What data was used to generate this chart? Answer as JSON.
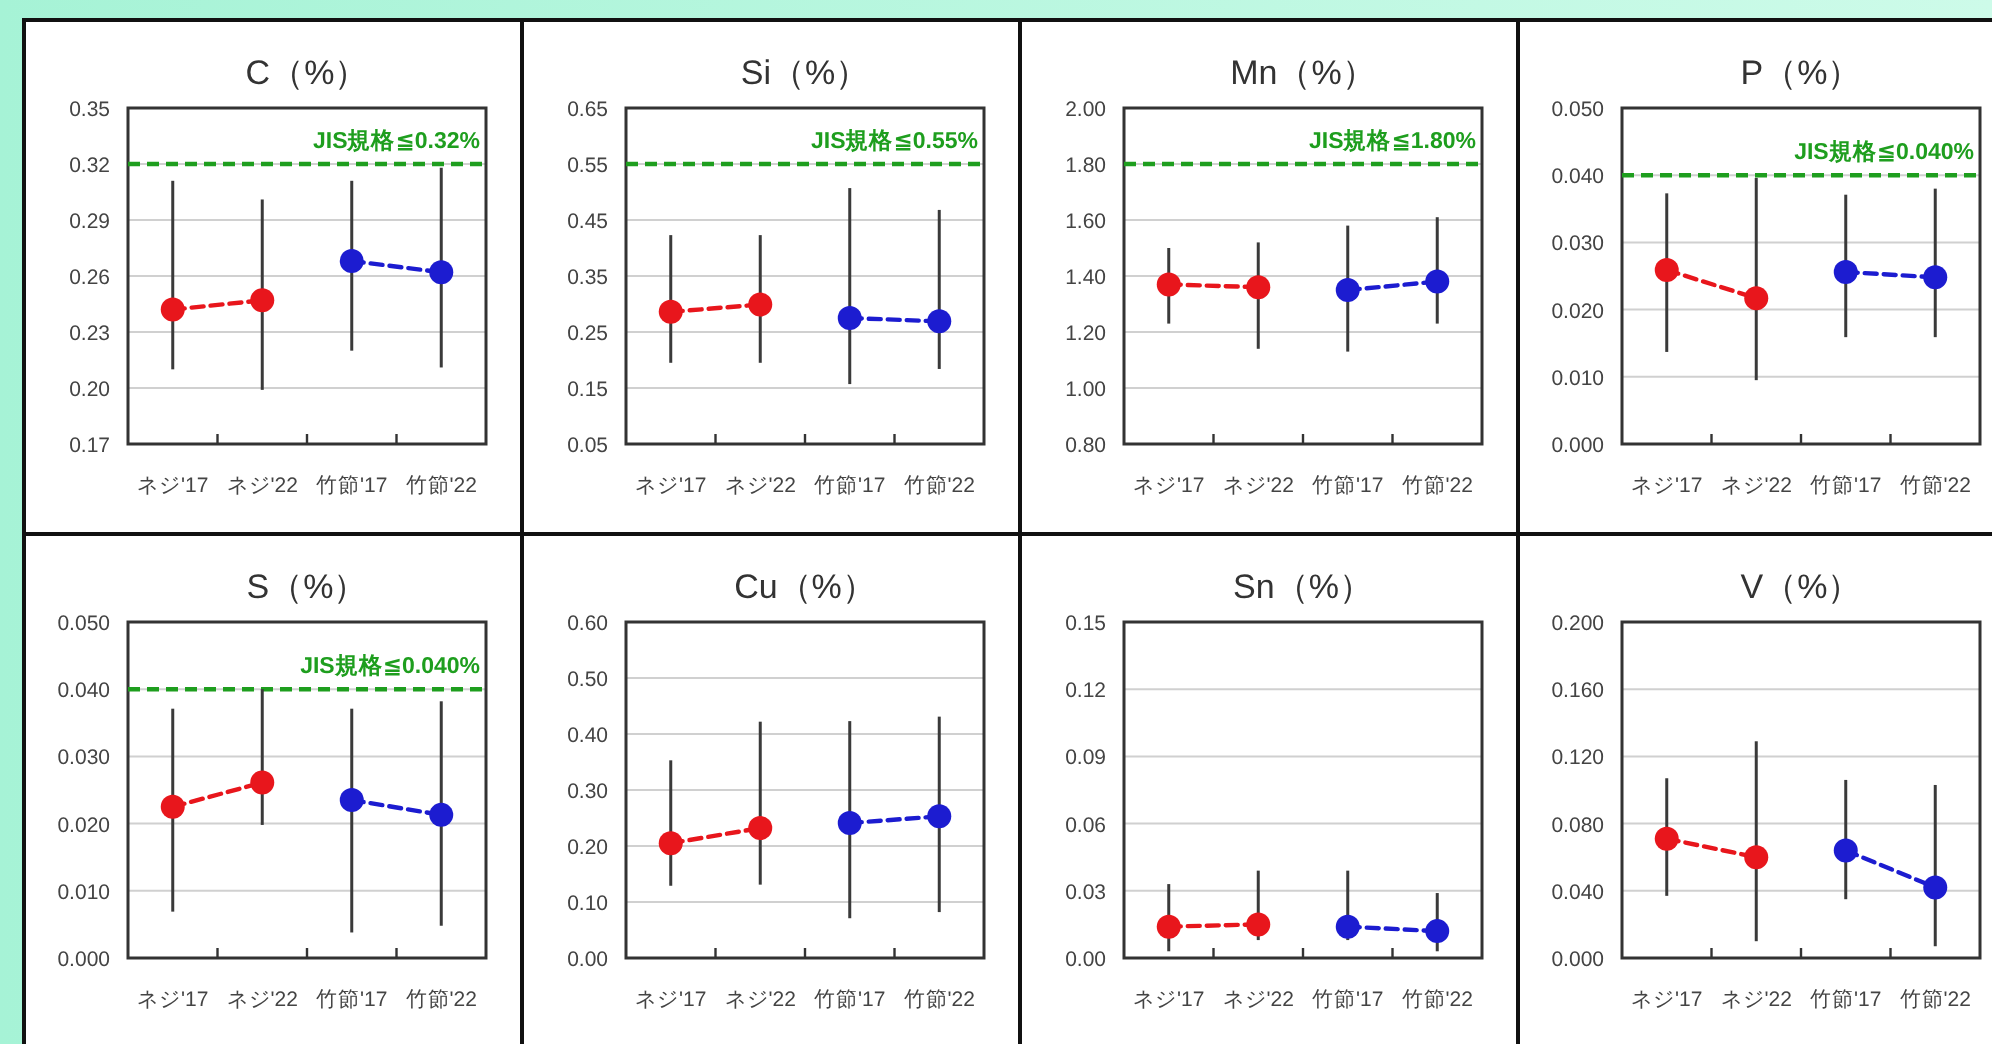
{
  "chart_data": [
    {
      "type": "line",
      "title": "C（%）",
      "categories": [
        "ネジ'17",
        "ネジ'22",
        "竹節'17",
        "竹節'22"
      ],
      "grid": "y",
      "marker": "circle",
      "line_style": "dashed",
      "ylim": [
        0.17,
        0.35
      ],
      "yticks": [
        0.17,
        {
          "value": 0.2,
          "label": "0.20"
        },
        0.23,
        0.26,
        0.29,
        0.32,
        0.35
      ],
      "ref_lines": [
        {
          "axis": "y",
          "value": 0.32,
          "label": "JIS規格≦0.32%",
          "color": "#1e9e1e",
          "line_style": "dashed"
        }
      ],
      "series": [
        {
          "color": "#e8161c",
          "values": [
            0.242,
            0.247,
            null,
            null
          ],
          "errors": [
            [
              0.21,
              0.311
            ],
            [
              0.199,
              0.301
            ],
            null,
            null
          ]
        },
        {
          "color": "#1c1cd0",
          "values": [
            null,
            null,
            0.268,
            0.262
          ],
          "errors": [
            null,
            null,
            [
              0.22,
              0.311
            ],
            [
              0.211,
              0.318
            ]
          ]
        }
      ]
    },
    {
      "type": "line",
      "title": "Si（%）",
      "categories": [
        "ネジ'17",
        "ネジ'22",
        "竹節'17",
        "竹節'22"
      ],
      "grid": "y",
      "marker": "circle",
      "line_style": "dashed",
      "ylim": [
        0.05,
        0.65
      ],
      "yticks": [
        0.05,
        0.15,
        0.25,
        0.35,
        0.45,
        0.55,
        0.65
      ],
      "ref_lines": [
        {
          "axis": "y",
          "value": 0.55,
          "label": "JIS規格≦0.55%",
          "color": "#1e9e1e",
          "line_style": "dashed"
        }
      ],
      "series": [
        {
          "color": "#e8161c",
          "values": [
            0.286,
            0.299,
            null,
            null
          ],
          "errors": [
            [
              0.195,
              0.423
            ],
            [
              0.195,
              0.423
            ],
            null,
            null
          ]
        },
        {
          "color": "#1c1cd0",
          "values": [
            null,
            null,
            0.275,
            0.269
          ],
          "errors": [
            null,
            null,
            [
              0.157,
              0.507
            ],
            [
              0.184,
              0.468
            ]
          ]
        }
      ]
    },
    {
      "type": "line",
      "title": "Mn（%）",
      "categories": [
        "ネジ'17",
        "ネジ'22",
        "竹節'17",
        "竹節'22"
      ],
      "grid": "y",
      "marker": "circle",
      "line_style": "dashed",
      "ylim": [
        0.8,
        2.0
      ],
      "yticks": [
        {
          "value": 0.8,
          "label": "0.80"
        },
        {
          "value": 1.0,
          "label": "1.00"
        },
        {
          "value": 1.2,
          "label": "1.20"
        },
        {
          "value": 1.4,
          "label": "1.40"
        },
        {
          "value": 1.6,
          "label": "1.60"
        },
        {
          "value": 1.8,
          "label": "1.80"
        },
        {
          "value": 2.0,
          "label": "2.00"
        }
      ],
      "ref_lines": [
        {
          "axis": "y",
          "value": 1.8,
          "label": "JIS規格≦1.80%",
          "color": "#1e9e1e",
          "line_style": "dashed"
        }
      ],
      "series": [
        {
          "color": "#e8161c",
          "values": [
            1.37,
            1.36,
            null,
            null
          ],
          "errors": [
            [
              1.23,
              1.5
            ],
            [
              1.14,
              1.52
            ],
            null,
            null
          ]
        },
        {
          "color": "#1c1cd0",
          "values": [
            null,
            null,
            1.35,
            1.38
          ],
          "errors": [
            null,
            null,
            [
              1.13,
              1.58
            ],
            [
              1.23,
              1.61
            ]
          ]
        }
      ]
    },
    {
      "type": "line",
      "title": "P（%）",
      "categories": [
        "ネジ'17",
        "ネジ'22",
        "竹節'17",
        "竹節'22"
      ],
      "grid": "y",
      "marker": "circle",
      "line_style": "dashed",
      "ylim": [
        0,
        0.05
      ],
      "yticks": [
        {
          "value": 0,
          "label": "0.000"
        },
        {
          "value": 0.01,
          "label": "0.010"
        },
        {
          "value": 0.02,
          "label": "0.020"
        },
        {
          "value": 0.03,
          "label": "0.030"
        },
        {
          "value": 0.04,
          "label": "0.040"
        },
        {
          "value": 0.05,
          "label": "0.050"
        }
      ],
      "ref_lines": [
        {
          "axis": "y",
          "value": 0.04,
          "label": "JIS規格≦0.040%",
          "color": "#1e9e1e",
          "line_style": "dashed"
        }
      ],
      "series": [
        {
          "color": "#e8161c",
          "values": [
            0.0259,
            0.0217,
            null,
            null
          ],
          "errors": [
            [
              0.0137,
              0.0373
            ],
            [
              0.0095,
              0.0396
            ],
            null,
            null
          ]
        },
        {
          "color": "#1c1cd0",
          "values": [
            null,
            null,
            0.0256,
            0.0248
          ],
          "errors": [
            null,
            null,
            [
              0.0159,
              0.0371
            ],
            [
              0.0159,
              0.038
            ]
          ]
        }
      ]
    },
    {
      "type": "line",
      "title": "S（%）",
      "categories": [
        "ネジ'17",
        "ネジ'22",
        "竹節'17",
        "竹節'22"
      ],
      "grid": "y",
      "marker": "circle",
      "line_style": "dashed",
      "ylim": [
        0,
        0.05
      ],
      "yticks": [
        {
          "value": 0,
          "label": "0.000"
        },
        {
          "value": 0.01,
          "label": "0.010"
        },
        {
          "value": 0.02,
          "label": "0.020"
        },
        {
          "value": 0.03,
          "label": "0.030"
        },
        {
          "value": 0.04,
          "label": "0.040"
        },
        {
          "value": 0.05,
          "label": "0.050"
        }
      ],
      "ref_lines": [
        {
          "axis": "y",
          "value": 0.04,
          "label": "JIS規格≦0.040%",
          "color": "#1e9e1e",
          "line_style": "dashed"
        }
      ],
      "series": [
        {
          "color": "#e8161c",
          "values": [
            0.0225,
            0.0261,
            null,
            null
          ],
          "errors": [
            [
              0.0069,
              0.0371
            ],
            [
              0.0198,
              0.04
            ],
            null,
            null
          ]
        },
        {
          "color": "#1c1cd0",
          "values": [
            null,
            null,
            0.0235,
            0.0213
          ],
          "errors": [
            null,
            null,
            [
              0.0038,
              0.0371
            ],
            [
              0.0048,
              0.0382
            ]
          ]
        }
      ]
    },
    {
      "type": "line",
      "title": "Cu（%）",
      "categories": [
        "ネジ'17",
        "ネジ'22",
        "竹節'17",
        "竹節'22"
      ],
      "grid": "y",
      "marker": "circle",
      "line_style": "dashed",
      "ylim": [
        0,
        0.6
      ],
      "yticks": [
        {
          "value": 0,
          "label": "0.00"
        },
        {
          "value": 0.1,
          "label": "0.10"
        },
        {
          "value": 0.2,
          "label": "0.20"
        },
        {
          "value": 0.3,
          "label": "0.30"
        },
        {
          "value": 0.4,
          "label": "0.40"
        },
        {
          "value": 0.5,
          "label": "0.50"
        },
        {
          "value": 0.6,
          "label": "0.60"
        }
      ],
      "series": [
        {
          "color": "#e8161c",
          "values": [
            0.205,
            0.232,
            null,
            null
          ],
          "errors": [
            [
              0.129,
              0.353
            ],
            [
              0.131,
              0.422
            ],
            null,
            null
          ]
        },
        {
          "color": "#1c1cd0",
          "values": [
            null,
            null,
            0.241,
            0.253
          ],
          "errors": [
            null,
            null,
            [
              0.071,
              0.423
            ],
            [
              0.082,
              0.431
            ]
          ]
        }
      ]
    },
    {
      "type": "line",
      "title": "Sn（%）",
      "categories": [
        "ネジ'17",
        "ネジ'22",
        "竹節'17",
        "竹節'22"
      ],
      "grid": "y",
      "marker": "circle",
      "line_style": "dashed",
      "ylim": [
        0,
        0.15
      ],
      "yticks": [
        {
          "value": 0,
          "label": "0.00"
        },
        0.03,
        0.06,
        0.09,
        0.12,
        0.15
      ],
      "series": [
        {
          "color": "#e8161c",
          "values": [
            0.014,
            0.015,
            null,
            null
          ],
          "errors": [
            [
              0.003,
              0.033
            ],
            [
              0.008,
              0.039
            ],
            null,
            null
          ]
        },
        {
          "color": "#1c1cd0",
          "values": [
            null,
            null,
            0.014,
            0.012
          ],
          "errors": [
            null,
            null,
            [
              0.008,
              0.039
            ],
            [
              0.003,
              0.029
            ]
          ]
        }
      ]
    },
    {
      "type": "line",
      "title": "V（%）",
      "categories": [
        "ネジ'17",
        "ネジ'22",
        "竹節'17",
        "竹節'22"
      ],
      "grid": "y",
      "marker": "circle",
      "line_style": "dashed",
      "ylim": [
        0,
        0.2
      ],
      "yticks": [
        {
          "value": 0,
          "label": "0.000"
        },
        {
          "value": 0.04,
          "label": "0.040"
        },
        {
          "value": 0.08,
          "label": "0.080"
        },
        {
          "value": 0.12,
          "label": "0.120"
        },
        {
          "value": 0.16,
          "label": "0.160"
        },
        {
          "value": 0.2,
          "label": "0.200"
        }
      ],
      "series": [
        {
          "color": "#e8161c",
          "values": [
            0.071,
            0.06,
            null,
            null
          ],
          "errors": [
            [
              0.037,
              0.107
            ],
            [
              0.01,
              0.129
            ],
            null,
            null
          ]
        },
        {
          "color": "#1c1cd0",
          "values": [
            null,
            null,
            0.064,
            0.042
          ],
          "errors": [
            null,
            null,
            [
              0.035,
              0.106
            ],
            [
              0.007,
              0.103
            ]
          ]
        }
      ]
    }
  ]
}
